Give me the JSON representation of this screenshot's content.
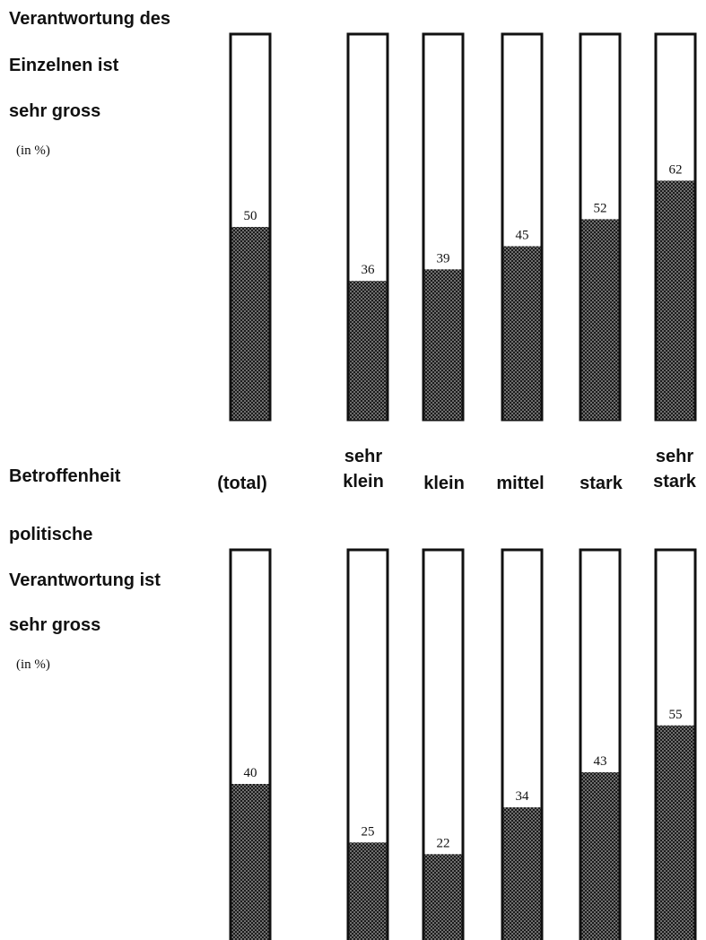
{
  "chart_data": [
    {
      "type": "bar",
      "title_lines": [
        "Verantwortung des",
        "Einzelnen ist",
        "sehr gross"
      ],
      "unit": "(in %)",
      "categories": [
        "(total)",
        "sehr klein",
        "klein",
        "mittel",
        "stark",
        "sehr stark"
      ],
      "values": [
        50,
        36,
        39,
        45,
        52,
        62
      ],
      "ylim": [
        0,
        100
      ]
    },
    {
      "type": "bar",
      "title_lines": [
        "politische",
        "Verantwortung ist",
        "sehr gross"
      ],
      "unit": "(in %)",
      "categories": [
        "(total)",
        "sehr klein",
        "klein",
        "mittel",
        "stark",
        "sehr stark"
      ],
      "values": [
        40,
        25,
        22,
        34,
        43,
        55
      ],
      "ylim": [
        0,
        100
      ]
    }
  ],
  "axis": {
    "title": "Betroffenheit",
    "categories": [
      {
        "lines": [
          "(total)"
        ]
      },
      {
        "lines": [
          "sehr",
          "klein"
        ]
      },
      {
        "lines": [
          "klein"
        ]
      },
      {
        "lines": [
          "mittel"
        ]
      },
      {
        "lines": [
          "stark"
        ]
      },
      {
        "lines": [
          "sehr",
          "stark"
        ]
      }
    ]
  },
  "colors": {
    "fill": "#4a4a4a",
    "outline": "#111111"
  }
}
